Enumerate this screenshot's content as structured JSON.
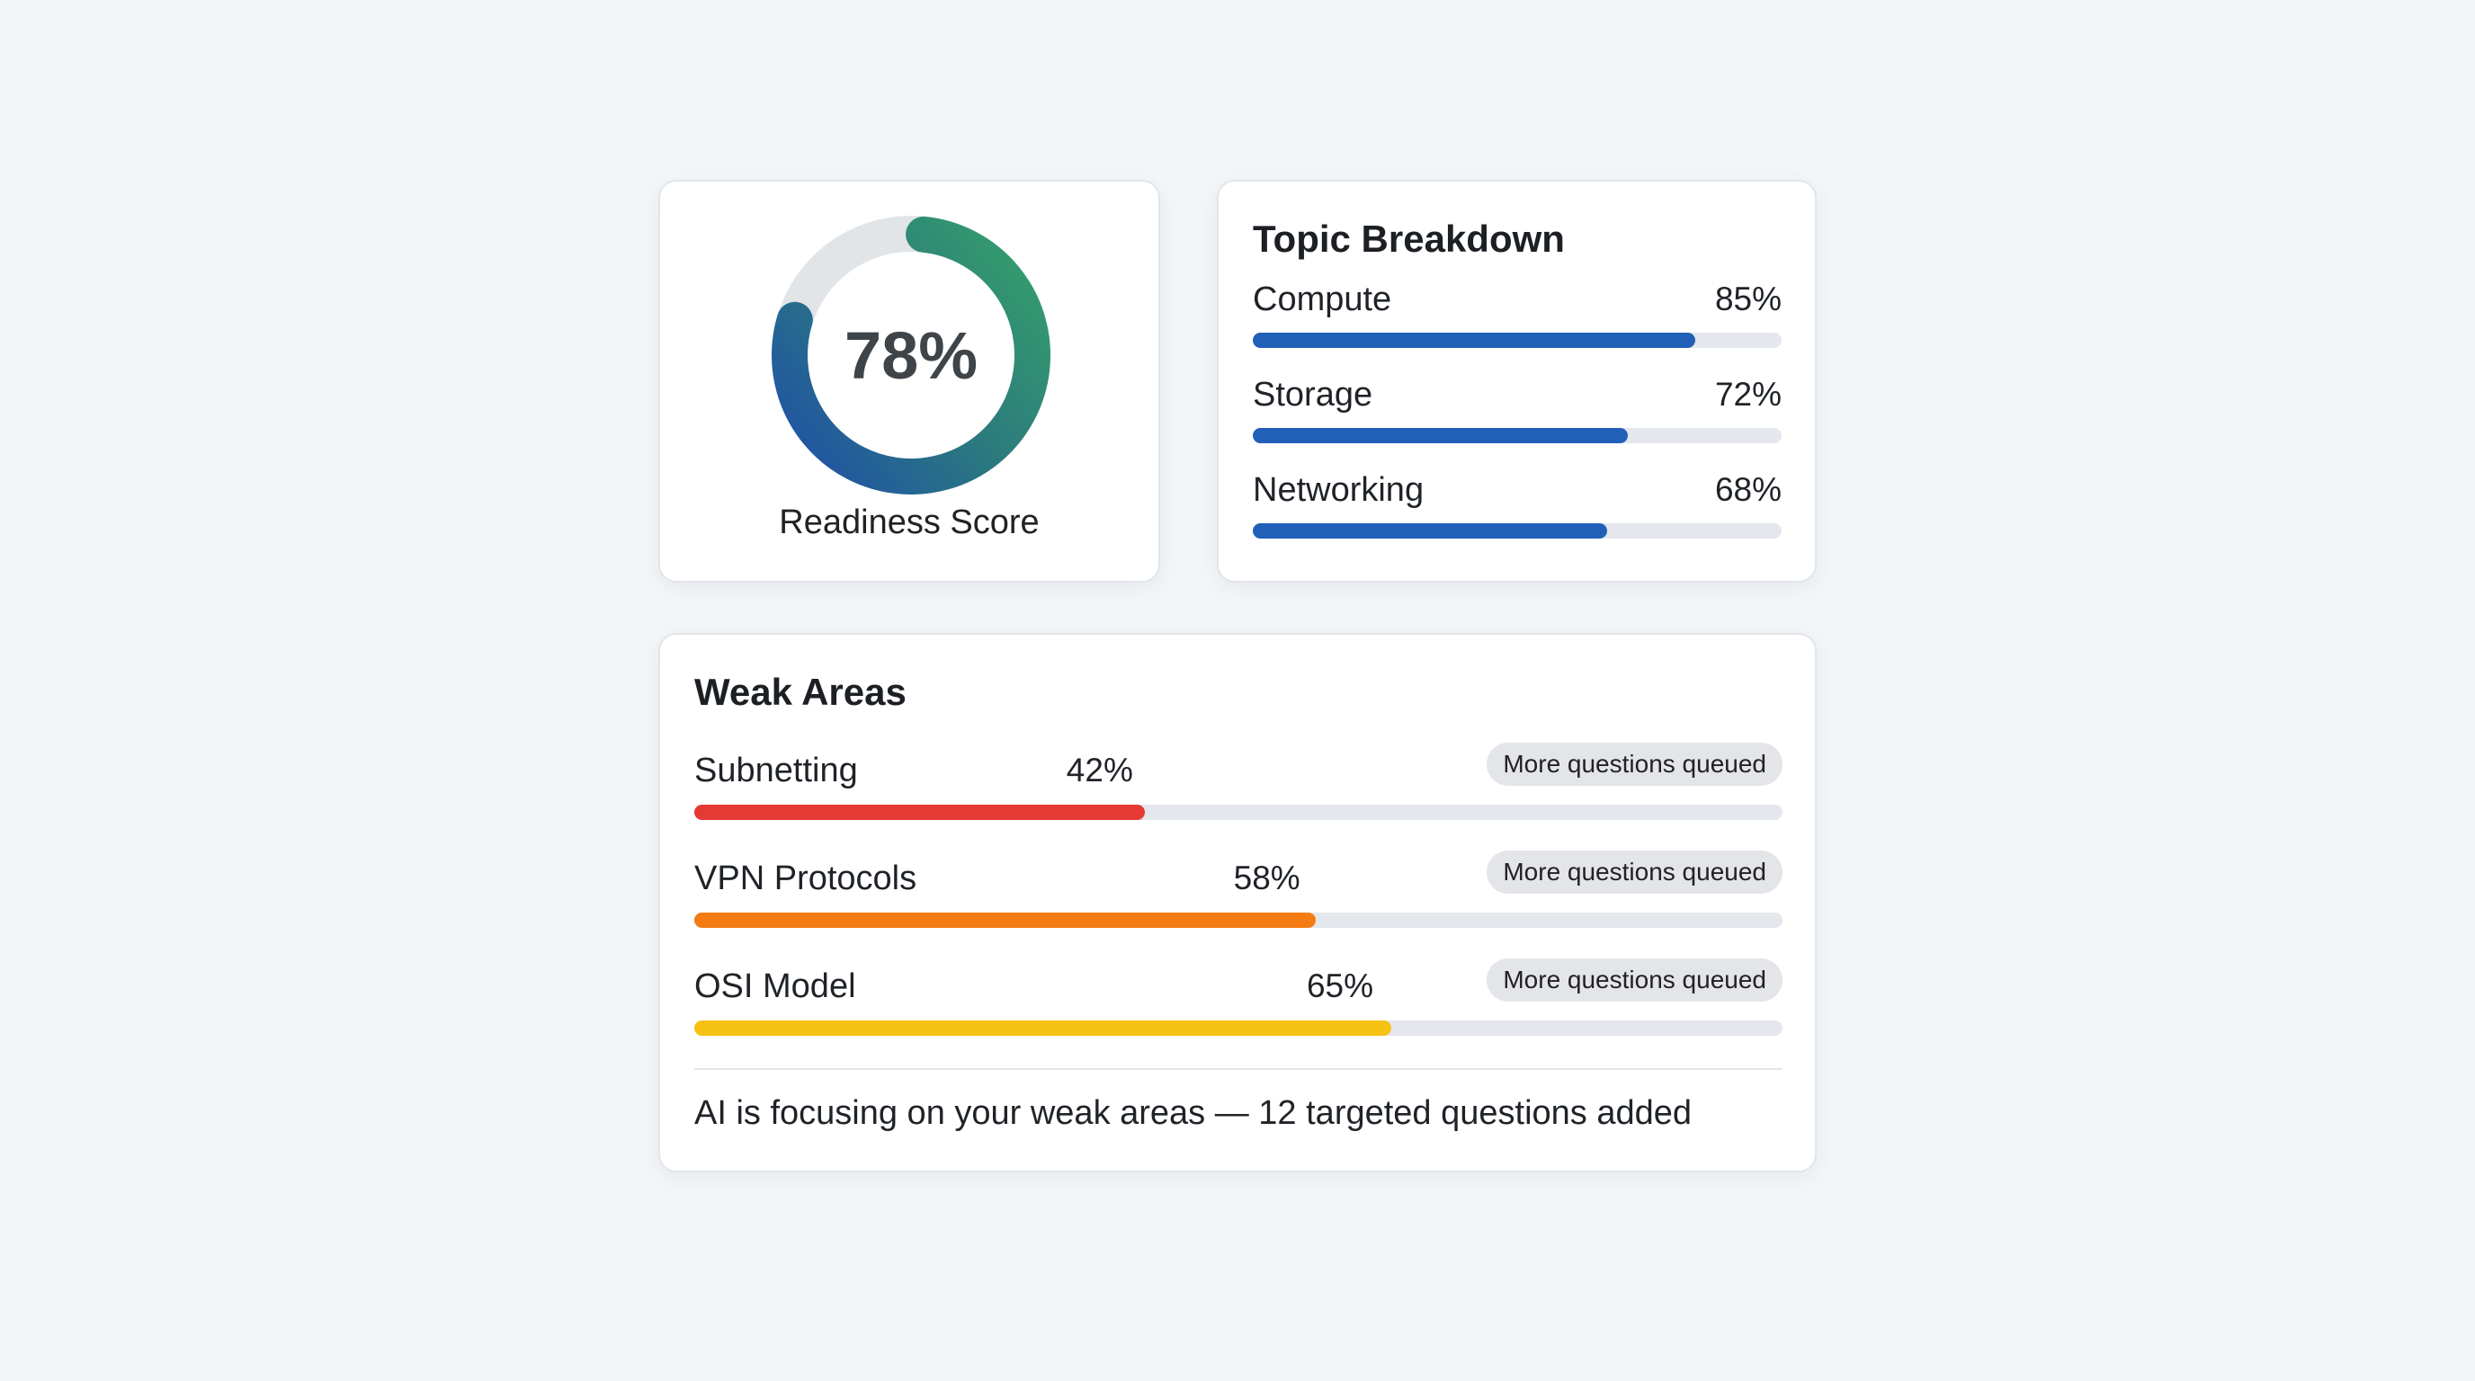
{
  "readiness": {
    "value": 78,
    "value_label": "78%",
    "label": "Readiness Score",
    "gradient": [
      "#1f4fa8",
      "#2b7a7e",
      "#35a06a"
    ],
    "track_color": "#e2e5e8"
  },
  "topics": {
    "title": "Topic Breakdown",
    "bar_color": "#2160b8",
    "items": [
      {
        "label": "Compute",
        "pct_label": "85%",
        "value": 85
      },
      {
        "label": "Storage",
        "pct_label": "72%",
        "value": 72
      },
      {
        "label": "Networking",
        "pct_label": "68%",
        "value": 68
      }
    ]
  },
  "weak": {
    "title": "Weak Areas",
    "items": [
      {
        "label": "Subnetting",
        "pct_label": "42%",
        "value": 42,
        "color": "#e53935",
        "badge": "More questions queued"
      },
      {
        "label": "VPN Protocols",
        "pct_label": "58%",
        "value": 58,
        "color": "#f57c13",
        "badge": "More questions queued"
      },
      {
        "label": "OSI Model",
        "pct_label": "65%",
        "value": 65,
        "color": "#f6c214",
        "badge": "More questions queued"
      }
    ],
    "footer": "AI is focusing on your weak areas — 12 targeted questions added"
  }
}
